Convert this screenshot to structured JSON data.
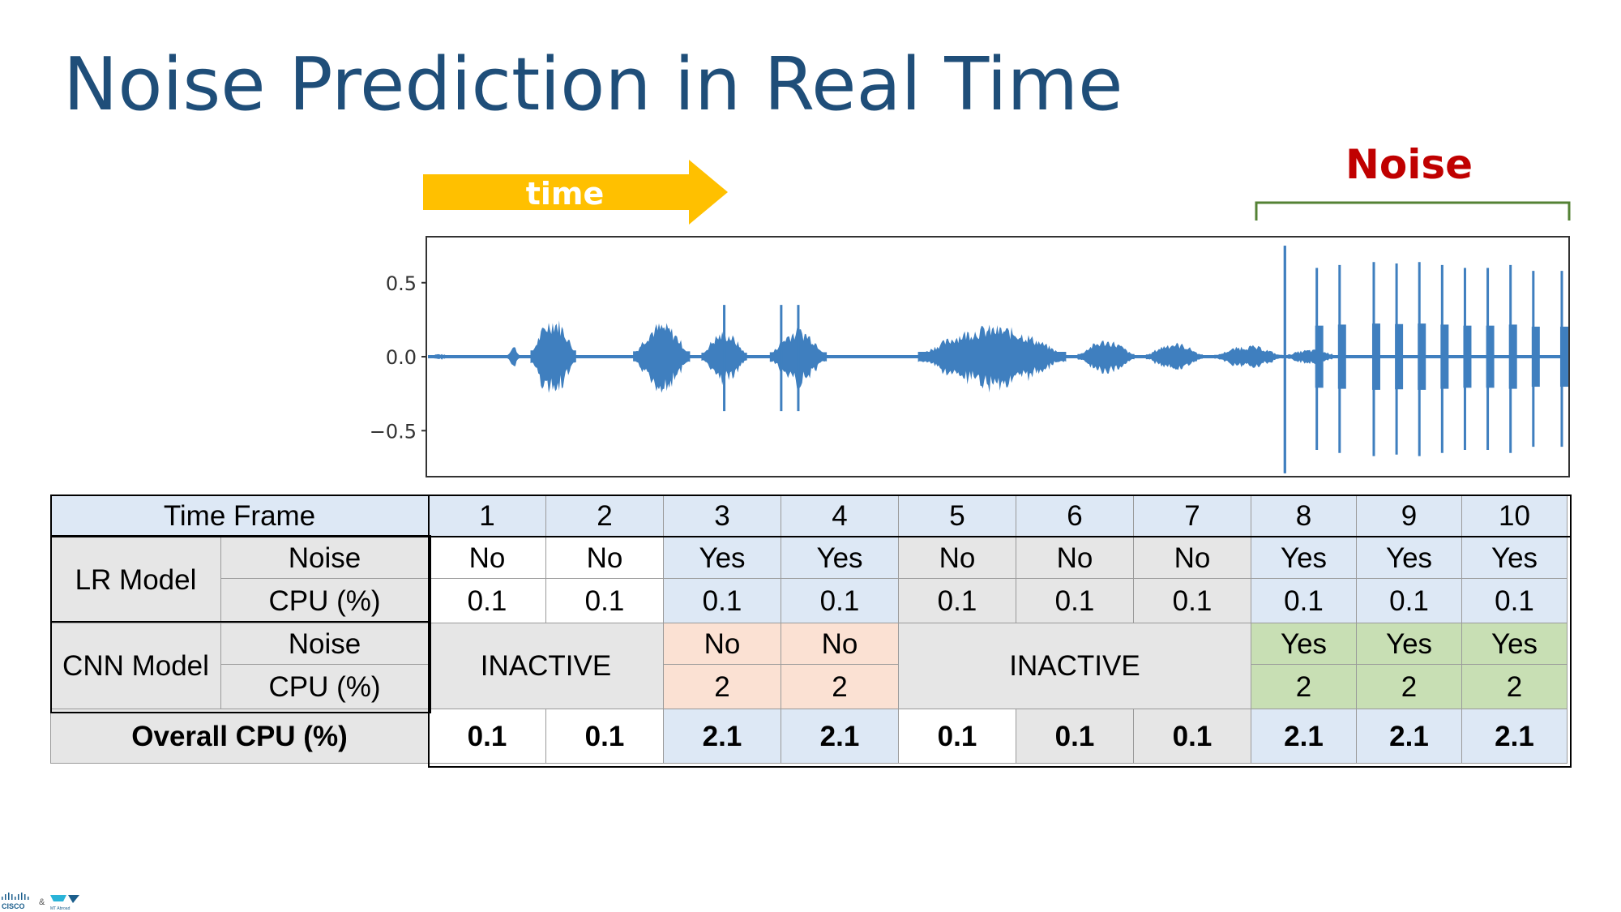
{
  "title": "Noise Prediction in Real Time",
  "arrow_label": "time",
  "noise_label": "Noise",
  "colors": {
    "title": "#1f4e79",
    "noise_label": "#c00000",
    "arrow": "#ffc000",
    "bracket": "#548235",
    "waveform": "#3f7fbf",
    "blue_cell": "#dde8f5",
    "gray_cell": "#e6e6e6",
    "peach_cell": "#fbe1d3",
    "green_cell": "#c8dfb4"
  },
  "chart_data": {
    "type": "line",
    "ylim": [
      -0.8,
      0.8
    ],
    "yticks": [
      "0.5",
      "0.0",
      "−0.5"
    ],
    "ytick_values": [
      0.5,
      0.0,
      -0.5
    ],
    "segments": [
      {
        "x": [
          0.0,
          0.02
        ],
        "amp": 0.02
      },
      {
        "x": [
          0.07,
          0.08
        ],
        "amp": 0.08
      },
      {
        "x": [
          0.09,
          0.13
        ],
        "amp": 0.28
      },
      {
        "x": [
          0.18,
          0.23
        ],
        "amp": 0.24
      },
      {
        "x": [
          0.24,
          0.28
        ],
        "amp": 0.18
      },
      {
        "x": [
          0.3,
          0.35
        ],
        "amp": 0.2
      },
      {
        "x": [
          0.43,
          0.56
        ],
        "amp": 0.22
      },
      {
        "x": [
          0.57,
          0.62
        ],
        "amp": 0.12
      },
      {
        "x": [
          0.63,
          0.68
        ],
        "amp": 0.1
      },
      {
        "x": [
          0.69,
          0.75
        ],
        "amp": 0.08
      },
      {
        "x": [
          0.75,
          0.8
        ],
        "amp": 0.05
      }
    ],
    "spikes": [
      0.26,
      0.31,
      0.325,
      0.752,
      0.752,
      0.78,
      0.8,
      0.83,
      0.85,
      0.87,
      0.89,
      0.91,
      0.93,
      0.95,
      0.97,
      0.995
    ],
    "spike_amps": [
      0.35,
      0.35,
      0.35,
      0.75,
      0.75,
      0.6,
      0.62,
      0.64,
      0.63,
      0.64,
      0.62,
      0.6,
      0.6,
      0.62,
      0.58,
      0.58
    ]
  },
  "table": {
    "time_frame_label": "Time Frame",
    "frames": [
      "1",
      "2",
      "3",
      "4",
      "5",
      "6",
      "7",
      "8",
      "9",
      "10"
    ],
    "lr_model_label": "LR Model",
    "cnn_model_label": "CNN Model",
    "noise_label": "Noise",
    "cpu_label": "CPU (%)",
    "lr_noise": [
      "No",
      "No",
      "Yes",
      "Yes",
      "No",
      "No",
      "No",
      "Yes",
      "Yes",
      "Yes"
    ],
    "lr_cpu": [
      "0.1",
      "0.1",
      "0.1",
      "0.1",
      "0.1",
      "0.1",
      "0.1",
      "0.1",
      "0.1",
      "0.1"
    ],
    "cnn_inactive_1": "INACTIVE",
    "cnn_inactive_2": "INACTIVE",
    "cnn_noise": {
      "f3": "No",
      "f4": "No",
      "f8": "Yes",
      "f9": "Yes",
      "f10": "Yes"
    },
    "cnn_cpu": {
      "f3": "2",
      "f4": "2",
      "f8": "2",
      "f9": "2",
      "f10": "2"
    },
    "overall_label": "Overall CPU (%)",
    "overall": [
      "0.1",
      "0.1",
      "2.1",
      "2.1",
      "0.1",
      "0.1",
      "0.1",
      "2.1",
      "2.1",
      "2.1"
    ]
  },
  "logo": {
    "brand": "CISCO",
    "separator": "&",
    "partner": "MT Abroad"
  }
}
